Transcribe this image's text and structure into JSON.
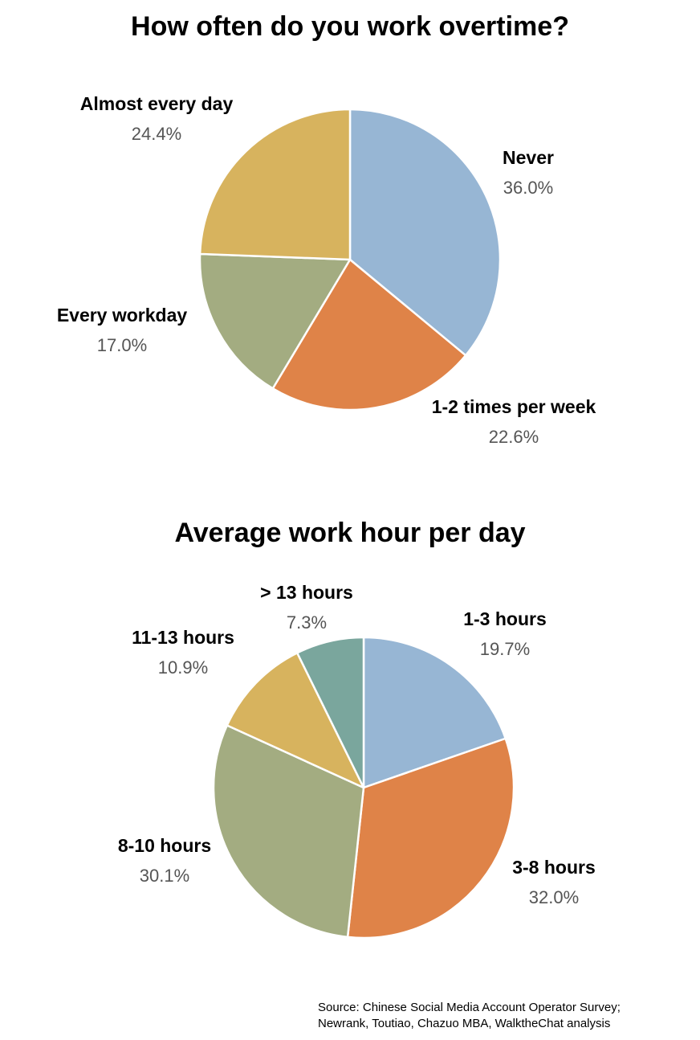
{
  "chart_data": [
    {
      "type": "pie",
      "title": "How often do you work overtime?",
      "slices": [
        {
          "label": "Never",
          "value": 36.0,
          "display": "36.0%",
          "color": "#97b6d4"
        },
        {
          "label": "1-2 times per week",
          "value": 22.6,
          "display": "22.6%",
          "color": "#df8348"
        },
        {
          "label": "Every workday",
          "value": 17.0,
          "display": "17.0%",
          "color": "#a3ac81"
        },
        {
          "label": "Almost every day",
          "value": 24.4,
          "display": "24.4%",
          "color": "#d7b35e"
        }
      ]
    },
    {
      "type": "pie",
      "title": "Average work hour per day",
      "slices": [
        {
          "label": "1-3 hours",
          "value": 19.7,
          "display": "19.7%",
          "color": "#97b6d4"
        },
        {
          "label": "3-8 hours",
          "value": 32.0,
          "display": "32.0%",
          "color": "#df8348"
        },
        {
          "label": "8-10 hours",
          "value": 30.1,
          "display": "30.1%",
          "color": "#a3ac81"
        },
        {
          "label": "11-13 hours",
          "value": 10.9,
          "display": "10.9%",
          "color": "#d7b35e"
        },
        {
          "label": "> 13 hours",
          "value": 7.3,
          "display": "7.3%",
          "color": "#7aa69d"
        }
      ]
    }
  ],
  "source": {
    "line1": "Source: Chinese Social Media Account Operator Survey;",
    "line2": "Newrank, Toutiao, Chazuo MBA, WalktheChat analysis"
  }
}
